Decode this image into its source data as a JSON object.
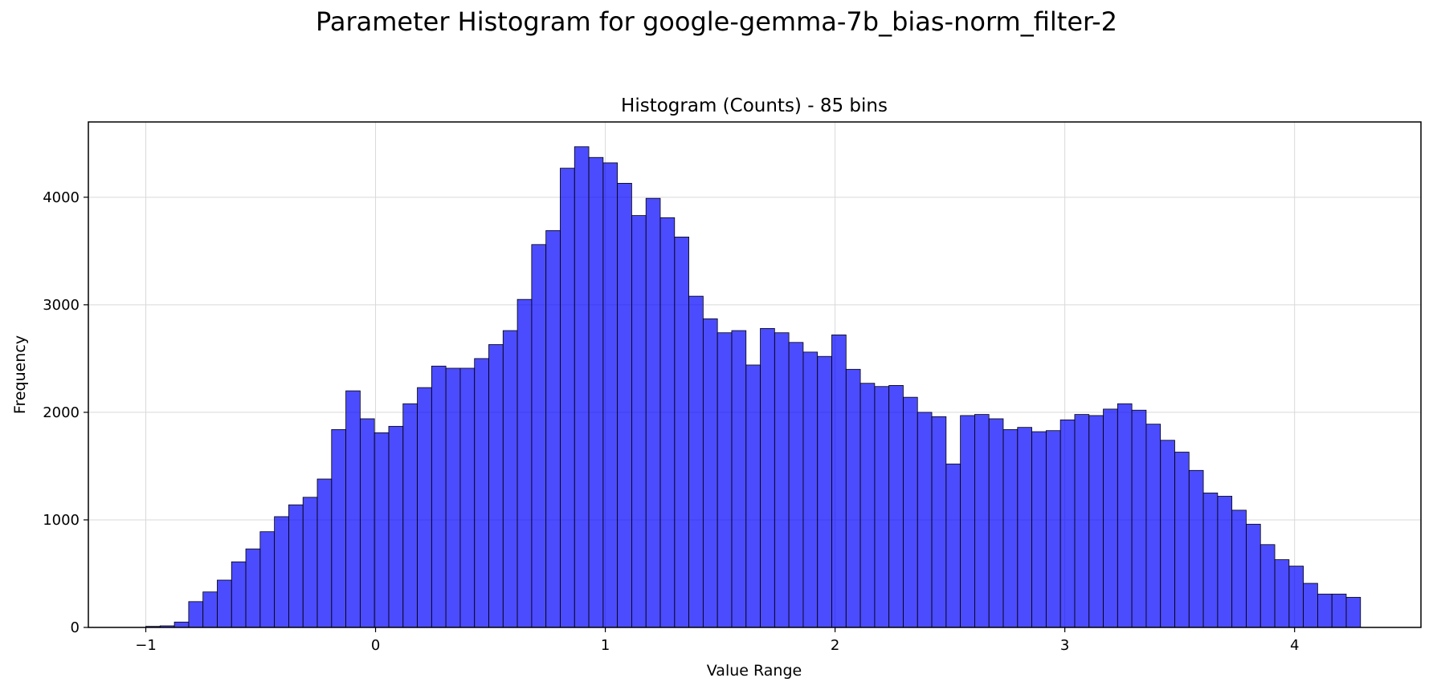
{
  "figure_title": "Parameter Histogram for google-gemma-7b_bias-norm_filter-2",
  "chart_data": {
    "type": "bar",
    "title": "Histogram (Counts) - 85 bins",
    "xlabel": "Value Range",
    "ylabel": "Frequency",
    "xlim": [
      -1.25,
      4.55
    ],
    "ylim": [
      0,
      4700
    ],
    "grid": true,
    "bar_color": "#0000ff",
    "bar_edge_color": "#000000",
    "bins": {
      "start": -1.0,
      "width": 0.0622,
      "counts": [
        10,
        15,
        50,
        240,
        330,
        440,
        610,
        730,
        890,
        1030,
        1140,
        1210,
        1380,
        1840,
        2200,
        1940,
        1810,
        1870,
        2080,
        2230,
        2430,
        2410,
        2410,
        2500,
        2630,
        2760,
        3050,
        3560,
        3690,
        4270,
        4470,
        4370,
        4320,
        4130,
        3830,
        3990,
        3810,
        3630,
        3080,
        2870,
        2740,
        2760,
        2440,
        2780,
        2740,
        2650,
        2560,
        2520,
        2720,
        2400,
        2270,
        2240,
        2250,
        2140,
        2000,
        1960,
        1520,
        1970,
        1980,
        1940,
        1840,
        1860,
        1820,
        1830,
        1930,
        1980,
        1970,
        2030,
        2080,
        2020,
        1890,
        1740,
        1630,
        1460,
        1250,
        1220,
        1090,
        960,
        770,
        630,
        570,
        410,
        310,
        310,
        280
      ]
    },
    "x_ticks": [
      -1,
      0,
      1,
      2,
      3,
      4
    ],
    "x_tick_labels": [
      "−1",
      "0",
      "1",
      "2",
      "3",
      "4"
    ],
    "y_ticks": [
      0,
      1000,
      2000,
      3000,
      4000
    ],
    "y_tick_labels": [
      "0",
      "1000",
      "2000",
      "3000",
      "4000"
    ]
  }
}
